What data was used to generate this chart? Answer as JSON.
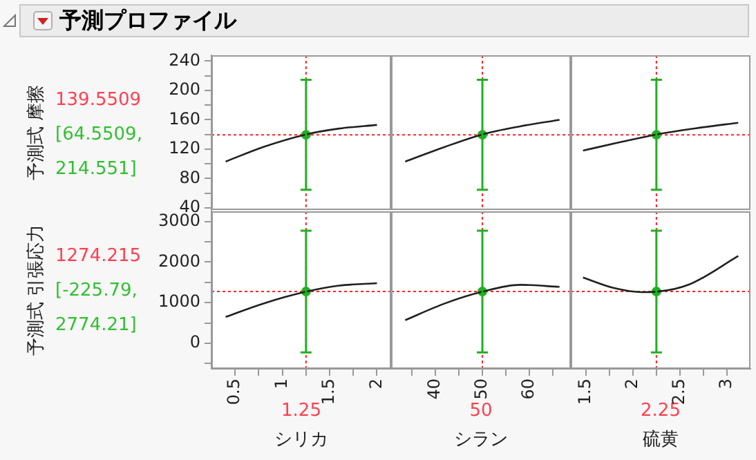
{
  "chart_data": [
    {
      "type": "line",
      "title": "予測プロファイル",
      "ylabel": "予測式 摩擦",
      "annotations": [
        "139.5509",
        "[64.5509, 214.551]"
      ],
      "xlim": [
        0.25,
        2.15
      ],
      "ylim": [
        37,
        248
      ],
      "yticks": [
        40,
        {
          "value": 60,
          "label": null
        },
        80,
        {
          "value": 100,
          "label": null
        },
        120,
        {
          "value": 140,
          "label": null
        },
        160,
        {
          "value": 180,
          "label": null
        },
        200,
        {
          "value": 220,
          "label": null
        },
        240
      ],
      "tick_labels": "y",
      "marker": "none",
      "ref_lines": [
        {
          "axis": "x",
          "value": 1.25,
          "color": "#ff2020",
          "line_style": "dotted"
        },
        {
          "axis": "y",
          "value": 139.5509,
          "color": "#ff2020",
          "line_style": "dotted"
        }
      ],
      "series": [
        {
          "type": "line",
          "color": "#202020",
          "x": [
            0.4,
            0.8,
            1.25,
            1.6,
            2.0
          ],
          "values": [
            103,
            123,
            140,
            148,
            153
          ]
        },
        {
          "type": "scatter",
          "marker": "circle",
          "color": "#22b022",
          "x": [
            1.25
          ],
          "values": [
            139.5509
          ],
          "errors": [
            [
              64.5509,
              214.551
            ]
          ]
        }
      ]
    },
    {
      "type": "line",
      "xlim": [
        30.6,
        68.8
      ],
      "ylim": [
        37,
        248
      ],
      "tick_labels": false,
      "marker": "none",
      "ref_lines": [
        {
          "axis": "x",
          "value": 50,
          "color": "#ff2020",
          "line_style": "dotted"
        },
        {
          "axis": "y",
          "value": 139.5509,
          "color": "#ff2020",
          "line_style": "dotted"
        }
      ],
      "series": [
        {
          "type": "line",
          "color": "#202020",
          "x": [
            33.6,
            42,
            50,
            58,
            66.4
          ],
          "values": [
            103,
            123,
            140,
            151,
            160
          ]
        },
        {
          "type": "scatter",
          "marker": "circle",
          "color": "#22b022",
          "x": [
            50
          ],
          "values": [
            139.5509
          ],
          "errors": [
            [
              64.5509,
              214.551
            ]
          ]
        }
      ]
    },
    {
      "type": "line",
      "xlim": [
        1.34,
        3.25
      ],
      "ylim": [
        37,
        248
      ],
      "tick_labels": false,
      "marker": "none",
      "ref_lines": [
        {
          "axis": "x",
          "value": 2.25,
          "color": "#ff2020",
          "line_style": "dotted"
        },
        {
          "axis": "y",
          "value": 139.5509,
          "color": "#ff2020",
          "line_style": "dotted"
        }
      ],
      "series": [
        {
          "type": "line",
          "color": "#202020",
          "x": [
            1.47,
            1.85,
            2.25,
            2.7,
            3.12
          ],
          "values": [
            118,
            129,
            140,
            149,
            156
          ]
        },
        {
          "type": "scatter",
          "marker": "circle",
          "color": "#22b022",
          "x": [
            2.25
          ],
          "values": [
            139.5509
          ],
          "errors": [
            [
              64.5509,
              214.551
            ]
          ]
        }
      ]
    },
    {
      "type": "line",
      "ylabel": "予測式 引張応力",
      "xlabel": "シリカ",
      "annotations": [
        "1274.215",
        "[-225.79, 2774.21]",
        "1.25"
      ],
      "xlim": [
        0.25,
        2.15
      ],
      "xticks": [
        0.5,
        {
          "value": 0.75,
          "label": null
        },
        1,
        {
          "value": 1.25,
          "label": null
        },
        1.5,
        {
          "value": 1.75,
          "label": null
        },
        2
      ],
      "ylim": [
        -630,
        3250
      ],
      "yticks": [
        {
          "value": -500,
          "label": null
        },
        0,
        {
          "value": 500,
          "label": null
        },
        1000,
        {
          "value": 1500,
          "label": null
        },
        2000,
        {
          "value": 2500,
          "label": null
        },
        3000
      ],
      "marker": "none",
      "ref_lines": [
        {
          "axis": "x",
          "value": 1.25,
          "color": "#ff2020",
          "line_style": "dotted"
        },
        {
          "axis": "y",
          "value": 1274.215,
          "color": "#ff2020",
          "line_style": "dotted"
        }
      ],
      "series": [
        {
          "type": "line",
          "color": "#202020",
          "x": [
            0.4,
            0.8,
            1.25,
            1.6,
            2.0
          ],
          "values": [
            650,
            980,
            1270,
            1420,
            1480
          ]
        },
        {
          "type": "scatter",
          "marker": "circle",
          "color": "#22b022",
          "x": [
            1.25
          ],
          "values": [
            1274.215
          ],
          "errors": [
            [
              -225.79,
              2774.21
            ]
          ]
        }
      ]
    },
    {
      "type": "line",
      "xlabel": "シラン",
      "annotations": [
        "50"
      ],
      "xlim": [
        30.6,
        68.8
      ],
      "xticks": [
        {
          "value": 35,
          "label": null
        },
        40,
        {
          "value": 45,
          "label": null
        },
        50,
        {
          "value": 55,
          "label": null
        },
        60,
        {
          "value": 65,
          "label": null
        }
      ],
      "ylim": [
        -630,
        3250
      ],
      "tick_labels": "x",
      "marker": "none",
      "ref_lines": [
        {
          "axis": "x",
          "value": 50,
          "color": "#ff2020",
          "line_style": "dotted"
        },
        {
          "axis": "y",
          "value": 1274.215,
          "color": "#ff2020",
          "line_style": "dotted"
        }
      ],
      "series": [
        {
          "type": "line",
          "color": "#202020",
          "x": [
            33.6,
            42,
            50,
            58,
            66.4
          ],
          "values": [
            570,
            980,
            1270,
            1440,
            1390
          ]
        },
        {
          "type": "scatter",
          "marker": "circle",
          "color": "#22b022",
          "x": [
            50
          ],
          "values": [
            1274.215
          ],
          "errors": [
            [
              -225.79,
              2774.21
            ]
          ]
        }
      ]
    },
    {
      "type": "line",
      "xlabel": "硫黄",
      "annotations": [
        "2.25"
      ],
      "xlim": [
        1.34,
        3.25
      ],
      "xticks": [
        1.5,
        {
          "value": 1.75,
          "label": null
        },
        2,
        {
          "value": 2.25,
          "label": null
        },
        2.5,
        {
          "value": 2.75,
          "label": null
        },
        3
      ],
      "ylim": [
        -630,
        3250
      ],
      "tick_labels": "x",
      "marker": "none",
      "ref_lines": [
        {
          "axis": "x",
          "value": 2.25,
          "color": "#ff2020",
          "line_style": "dotted"
        },
        {
          "axis": "y",
          "value": 1274.215,
          "color": "#ff2020",
          "line_style": "dotted"
        }
      ],
      "series": [
        {
          "type": "line",
          "color": "#202020",
          "x": [
            1.47,
            1.8,
            2.1,
            2.25,
            2.6,
            3.12
          ],
          "values": [
            1620,
            1360,
            1260,
            1270,
            1450,
            2150
          ]
        },
        {
          "type": "scatter",
          "marker": "circle",
          "color": "#22b022",
          "x": [
            2.25
          ],
          "values": [
            1274.215
          ],
          "errors": [
            [
              -225.79,
              2774.21
            ]
          ]
        }
      ]
    }
  ]
}
